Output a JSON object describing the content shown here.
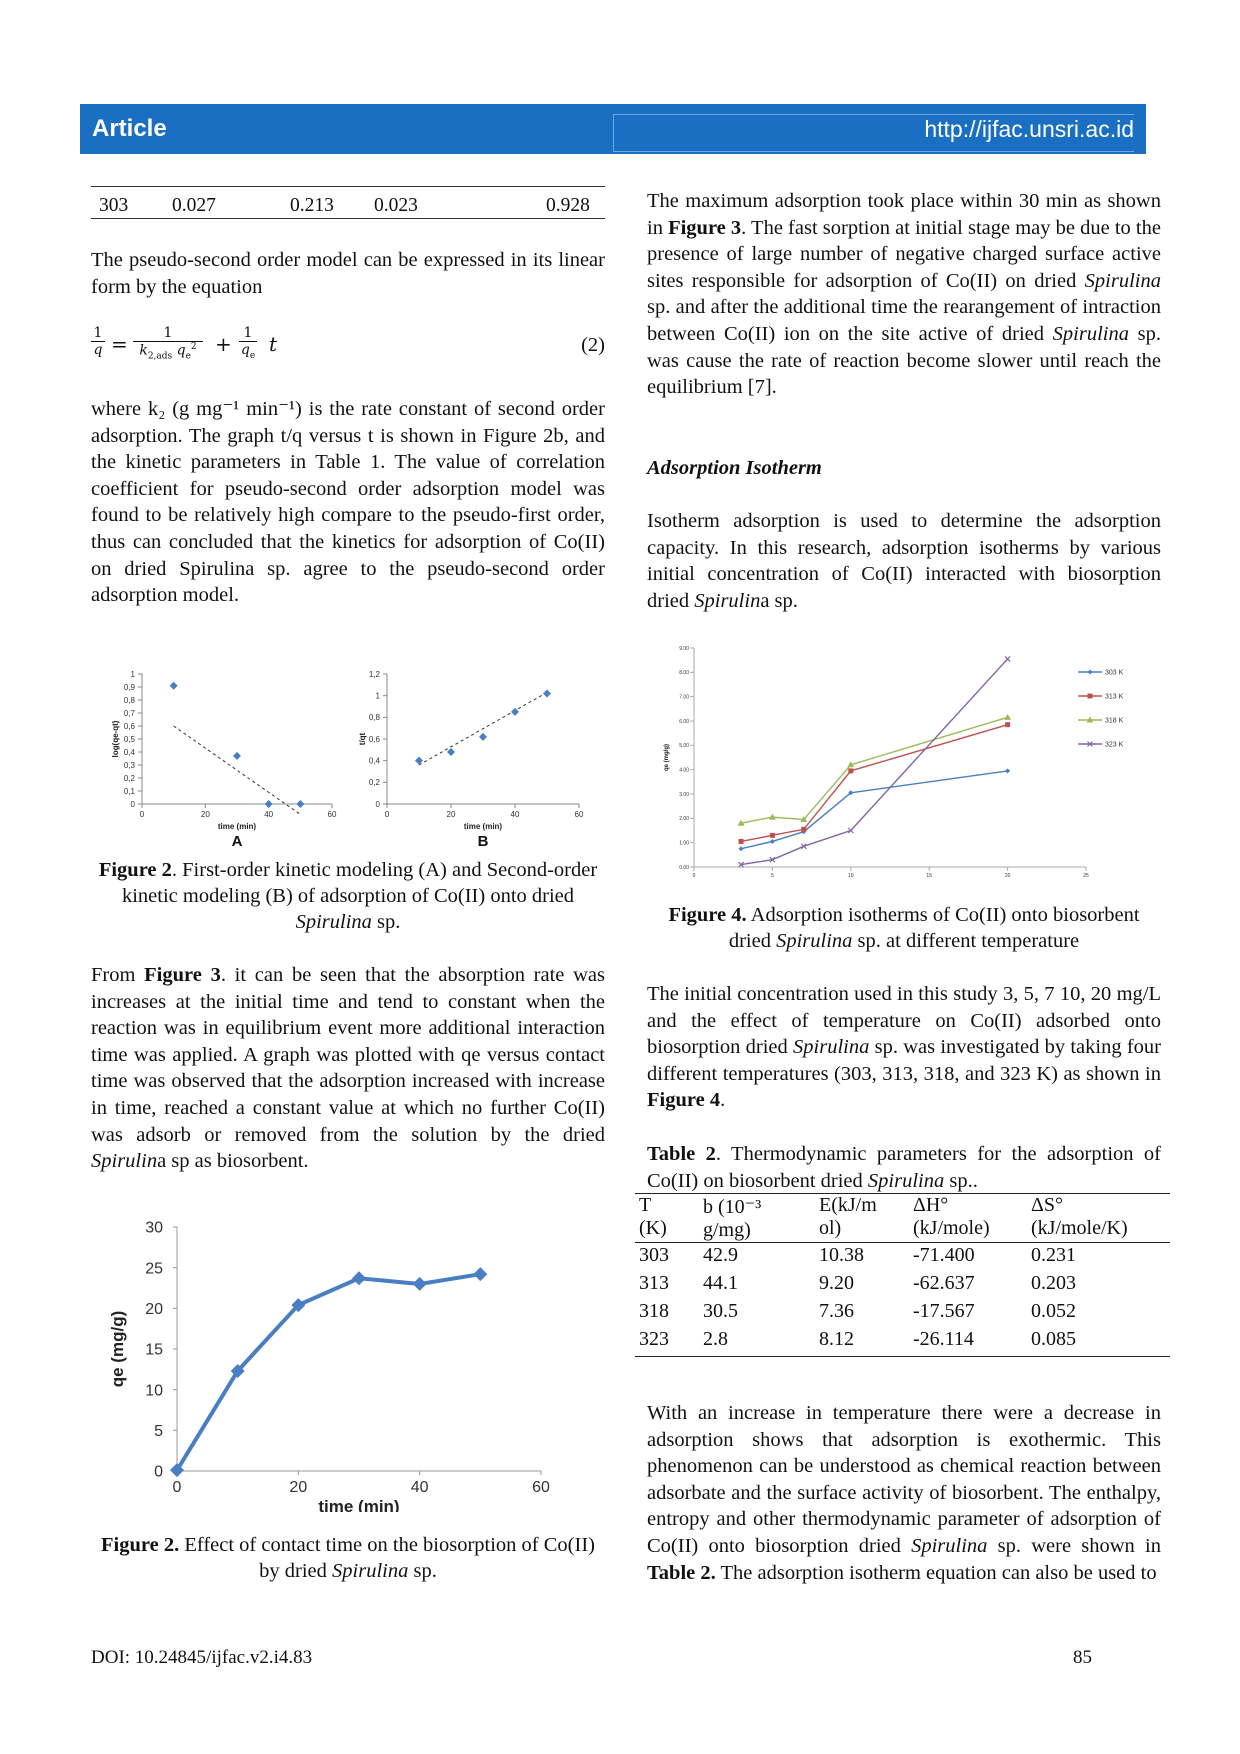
{
  "header": {
    "left": "Article",
    "right": "http://ijfac.unsri.ac.id"
  },
  "table1_tail": {
    "cells": [
      "303",
      "0.027",
      "0.213",
      "0.023",
      "0.928"
    ]
  },
  "left": {
    "p1": "The pseudo-second order model can be expressed in its linear form by the equation",
    "eq_number": "(2)",
    "p2": "where k₂ (g mg⁻¹ min⁻¹) is the rate constant of second order adsorption. The graph t/q versus t is shown in Figure 2b, and the kinetic parameters in Table 1. The value of correlation coefficient for pseudo-second order adsorption model was found to be relatively high compare to the pseudo-first order, thus can concluded that the kinetics for adsorption of Co(II) on dried Spirulina sp. agree to the pseudo-second order adsorption model.",
    "fig2_caption_bold": "Figure 2",
    "fig2_caption_text": ". First-order kinetic modeling (A) and Second-order kinetic modeling (B) of adsorption of Co(II) onto dried ",
    "fig2_caption_italic": "Spirulina",
    "fig2_caption_end": " sp.",
    "p3_a": "From ",
    "p3_bold": "Figure 3",
    "p3_b": ". it can be seen that the absorption rate was increases at the initial time and tend to constant when the reaction was in equilibrium event more additional interaction time was applied. A graph was plotted with qe versus contact time was observed that the adsorption increased with increase in time, reached a constant value at which no further Co(II) was adsorb or removed from the solution by the dried ",
    "p3_italic": "Spirulin",
    "p3_c": "a sp as biosorbent.",
    "fig3_caption_bold": "Figure 2.",
    "fig3_caption_text": " Effect of contact time on the biosorption of Co(II) by dried ",
    "fig3_caption_italic": "Spirulina",
    "fig3_caption_end": " sp."
  },
  "right": {
    "p1_a": "The maximum adsorption took place within 30 min as shown in ",
    "p1_bold": "Figure 3",
    "p1_b": ". The fast sorption at initial stage may be due to the presence of large number of negative charged surface active sites responsible for adsorption of Co(II) on dried ",
    "p1_italic1": "Spirulina",
    "p1_c": " sp. and after the additional time the rearangement of intraction between Co(II) ion on the site active of dried ",
    "p1_italic2": "Spirulina",
    "p1_d": " sp. was cause the rate of reaction become slower until reach the equilibrium [7].",
    "heading": "Adsorption Isotherm",
    "p2_a": "Isotherm adsorption is used to determine the adsorption capacity. In this research, adsorption isotherms by various initial concentration of Co(II) interacted with biosorption dried ",
    "p2_italic": "Spirulin",
    "p2_b": "a sp.",
    "fig4_caption_bold": "Figure 4.",
    "fig4_caption_text": " Adsorption isotherms of Co(II) onto biosorbent dried ",
    "fig4_caption_italic": "Spirulina",
    "fig4_caption_end": " sp. at different temperature",
    "p3_a": "The initial concentration used in this study 3, 5, 7 10, 20 mg/L and the effect of temperature on Co(II) adsorbed onto biosorption dried ",
    "p3_italic": "Spirulina",
    "p3_b": " sp. was investigated by taking four different temperatures (303, 313, 318, and 323 K) as shown in ",
    "p3_bold": "Figure 4",
    "p3_c": ".",
    "table2_title_bold": "Table 2",
    "table2_title_text": ". Thermodynamic parameters for the adsorption of Co(II) on biosorbent dried ",
    "table2_title_italic": "Spirulina",
    "table2_title_end": " sp..",
    "p4_a": "With an increase in temperature there were a decrease in adsorption shows that adsorption is exothermic. This phenomenon can be understood as chemical reaction between adsorbate and the surface activity of biosorbent. The enthalpy, entropy and other thermodynamic parameter of adsorption of Co(II) onto biosorption dried ",
    "p4_italic": "Spirulina",
    "p4_b": " sp. were shown in ",
    "p4_bold": "Table 2.",
    "p4_c": " The adsorption isotherm equation can also be used to"
  },
  "table2": {
    "headers": [
      [
        "T",
        "(K)"
      ],
      [
        "b (10⁻³",
        "g/mg)"
      ],
      [
        "E(kJ/m",
        "ol)"
      ],
      [
        "ΔH°",
        "(kJ/mole)"
      ],
      [
        "ΔS°",
        "(kJ/mole/K)"
      ]
    ],
    "rows": [
      [
        "303",
        "42.9",
        "10.38",
        "-71.400",
        "0.231"
      ],
      [
        "313",
        "44.1",
        "9.20",
        "-62.637",
        "0.203"
      ],
      [
        "318",
        "30.5",
        "7.36",
        "-17.567",
        "0.052"
      ],
      [
        "323",
        "2.8",
        "8.12",
        "-26.114",
        "0.085"
      ]
    ]
  },
  "footer": {
    "doi": "DOI: 10.24845/ijfac.v2.i4.83",
    "page": "85"
  },
  "chart_data": [
    {
      "id": "fig2A",
      "type": "scatter",
      "panel_label": "A",
      "xlabel": "time (min)",
      "ylabel": "log(qe-qt)",
      "xlim": [
        0,
        60
      ],
      "ylim": [
        0,
        1
      ],
      "xticks": [
        "0",
        "20",
        "40",
        "60"
      ],
      "yticks": [
        "0",
        "0,1",
        "0,2",
        "0,3",
        "0,4",
        "0,5",
        "0,6",
        "0,7",
        "0,8",
        "0,9",
        "1"
      ],
      "series": [
        {
          "x": [
            10,
            30,
            40,
            50
          ],
          "y": [
            0.91,
            0.37,
            0.0,
            0.0
          ]
        }
      ],
      "trendline": [
        [
          10,
          0.6
        ],
        [
          50,
          -0.08
        ]
      ],
      "color": "#4a7ec4"
    },
    {
      "id": "fig2B",
      "type": "scatter",
      "panel_label": "B",
      "xlabel": "time (min)",
      "ylabel": "t/qt",
      "xlim": [
        0,
        60
      ],
      "ylim": [
        0,
        1.2
      ],
      "xticks": [
        "0",
        "20",
        "40",
        "60"
      ],
      "yticks": [
        "0",
        "0,2",
        "0,4",
        "0,6",
        "0,8",
        "1",
        "1,2"
      ],
      "series": [
        {
          "x": [
            10,
            20,
            30,
            40,
            50
          ],
          "y": [
            0.4,
            0.48,
            0.62,
            0.85,
            1.02
          ]
        }
      ],
      "trendline": [
        [
          10,
          0.36
        ],
        [
          50,
          1.03
        ]
      ],
      "color": "#4a7ec4"
    },
    {
      "id": "fig3",
      "type": "line",
      "xlabel": "time (min)",
      "ylabel": "qe (mg/g)",
      "xlim": [
        0,
        60
      ],
      "ylim": [
        0,
        30
      ],
      "xticks": [
        "0",
        "20",
        "40",
        "60"
      ],
      "yticks": [
        "0",
        "5",
        "10",
        "15",
        "20",
        "25",
        "30"
      ],
      "series": [
        {
          "x": [
            0,
            10,
            20,
            30,
            40,
            50
          ],
          "y": [
            0.1,
            12.3,
            20.4,
            23.7,
            23.0,
            24.2
          ]
        }
      ],
      "color": "#4a7ec4"
    },
    {
      "id": "fig4",
      "type": "line",
      "xlabel": "",
      "ylabel": "qe (mg/g)",
      "xlim": [
        0,
        25
      ],
      "ylim": [
        0,
        9
      ],
      "yticks": [
        "0.00",
        "1.00",
        "2.00",
        "3.00",
        "4.00",
        "5.00",
        "6.00",
        "7.00",
        "8.00",
        "9.00"
      ],
      "xticks": [
        "0",
        "5",
        "10",
        "15",
        "20",
        "25"
      ],
      "x": [
        3,
        5,
        7,
        10,
        20
      ],
      "series": [
        {
          "name": "303 K",
          "color": "#4a7ec4",
          "marker": "diamond",
          "values": [
            0.75,
            1.05,
            1.45,
            3.05,
            3.95
          ]
        },
        {
          "name": "313 K",
          "color": "#c0504d",
          "marker": "square",
          "values": [
            1.05,
            1.3,
            1.55,
            3.95,
            5.85
          ]
        },
        {
          "name": "318 K",
          "color": "#9bbb59",
          "marker": "triangle",
          "values": [
            1.8,
            2.05,
            1.95,
            4.2,
            6.15
          ]
        },
        {
          "name": "323 K",
          "color": "#8064a2",
          "marker": "x",
          "values": [
            0.1,
            0.3,
            0.85,
            1.5,
            8.55
          ]
        }
      ],
      "legend": "right"
    }
  ]
}
